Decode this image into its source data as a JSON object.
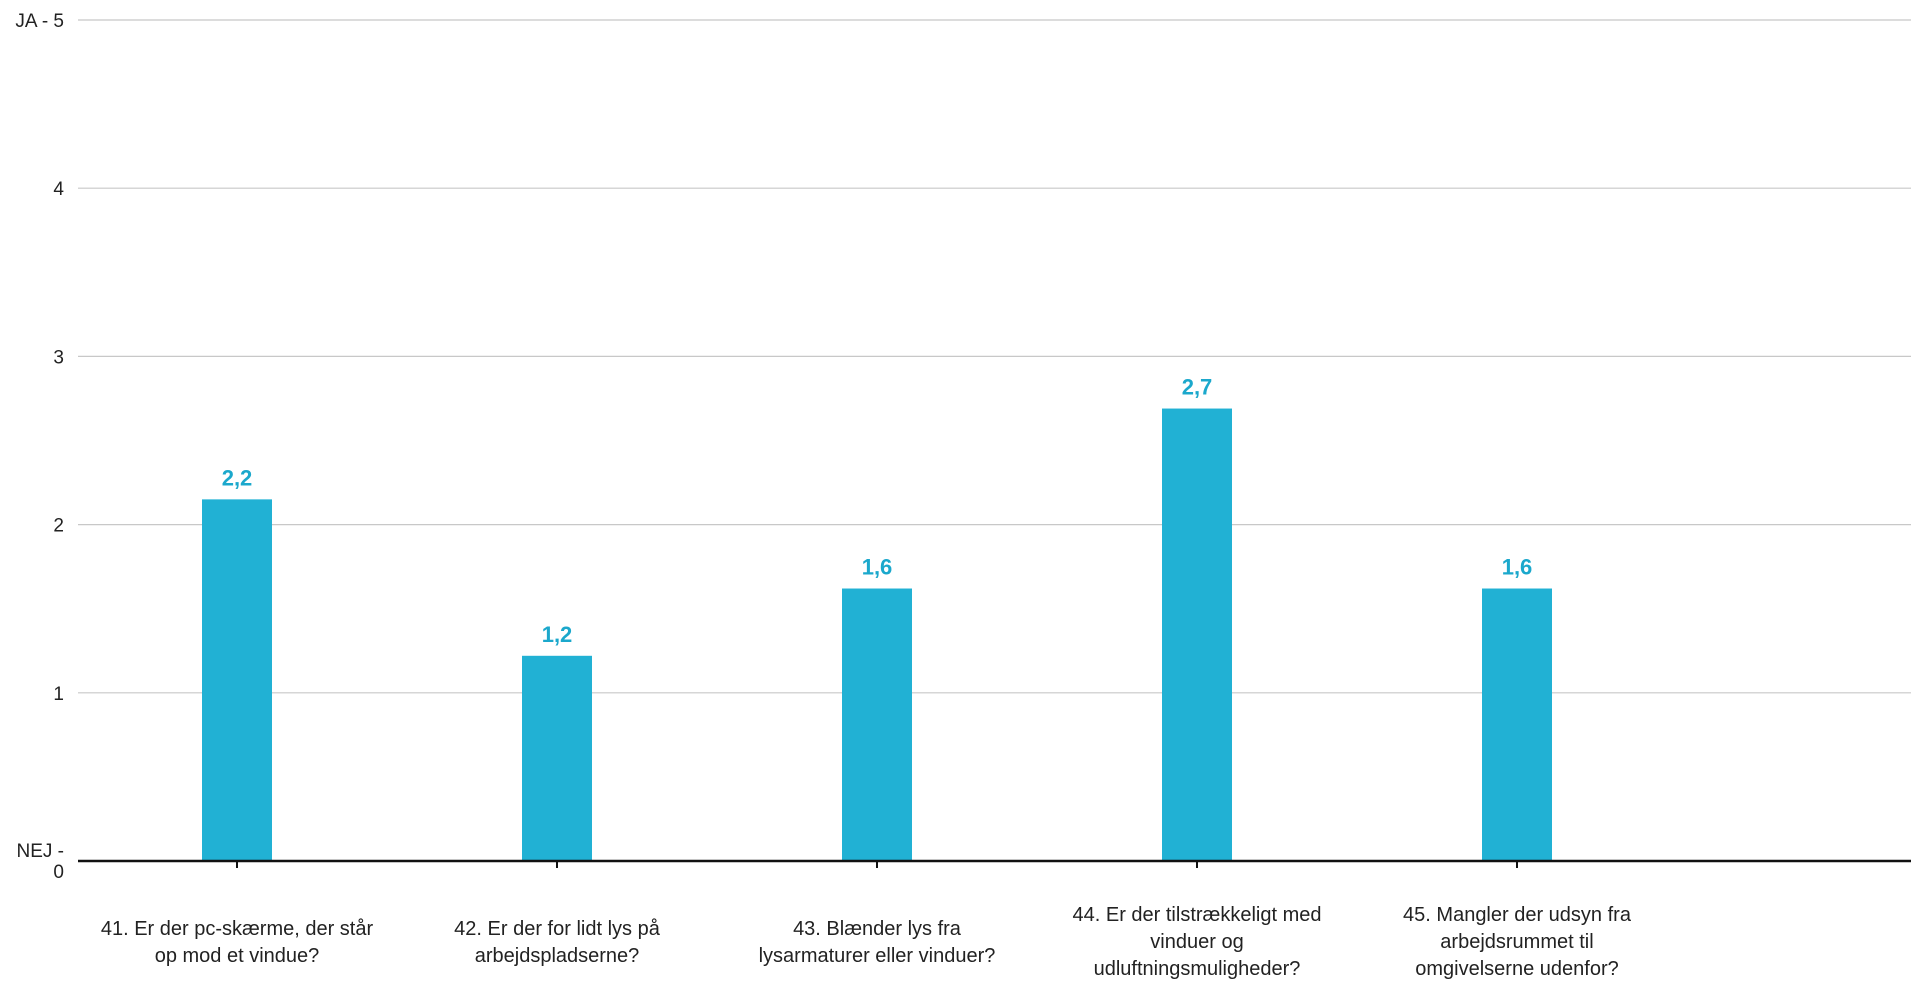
{
  "chart_data": {
    "type": "bar",
    "categories": [
      "41. Er der pc-skærme, der står op mod et vindue?",
      "42. Er der for lidt lys på arbejdspladserne?",
      "43. Blænder lys fra lysarmaturer eller vinduer?",
      "44. Er der tilstrækkeligt med vinduer og udluftningsmuligheder?",
      "45. Mangler der udsyn fra arbejdsrummet til omgivelserne udenfor?"
    ],
    "category_lines": [
      [
        "41. Er der pc-skærme, der står",
        "op mod et vindue?"
      ],
      [
        "42. Er der for lidt lys på",
        "arbejdspladserne?"
      ],
      [
        "43. Blænder lys fra",
        "lysarmaturer eller vinduer?"
      ],
      [
        "44. Er der tilstrækkeligt med",
        "vinduer og",
        "udluftningsmuligheder?"
      ],
      [
        "45. Mangler der udsyn fra",
        "arbejdsrummet til",
        "omgivelserne udenfor?"
      ]
    ],
    "values": [
      2.15,
      1.22,
      1.62,
      2.69,
      1.62
    ],
    "data_labels": [
      "2,2",
      "1,2",
      "1,6",
      "2,7",
      "1,6"
    ],
    "ylim": [
      0,
      5
    ],
    "y_ticks": [
      {
        "value": 5,
        "lines": [
          "JA - 5"
        ]
      },
      {
        "value": 4,
        "lines": [
          "4"
        ]
      },
      {
        "value": 3,
        "lines": [
          "3"
        ]
      },
      {
        "value": 2,
        "lines": [
          "2"
        ]
      },
      {
        "value": 1,
        "lines": [
          "1"
        ]
      },
      {
        "value": 0,
        "lines": [
          "NEJ -",
          "0"
        ]
      }
    ],
    "title": "",
    "xlabel": "",
    "ylabel": "",
    "grid": true,
    "colors": {
      "bar": "#21b1d4",
      "label": "#1ba8cc",
      "grid": "#c8c8c8",
      "axis": "#111111"
    }
  }
}
